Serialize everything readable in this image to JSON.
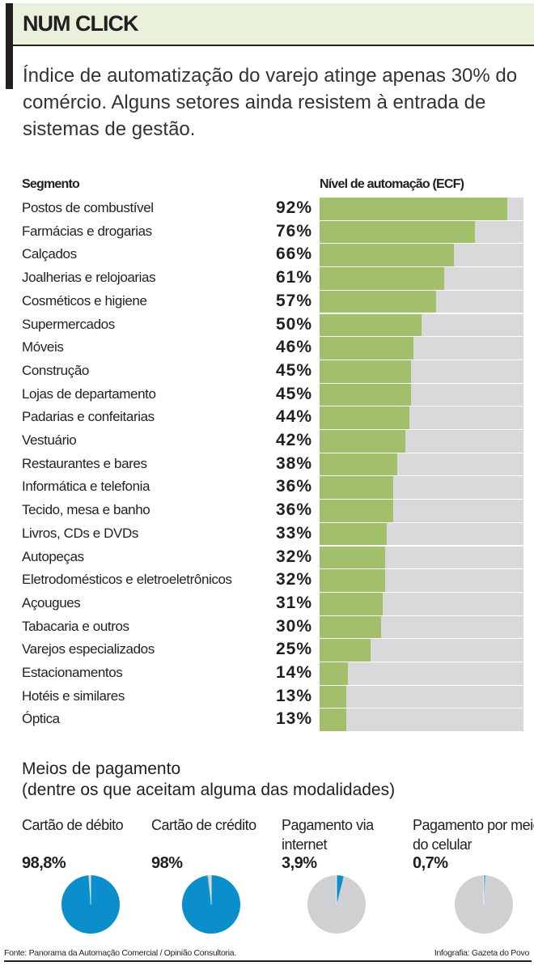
{
  "header": {
    "title": "NUM CLICK",
    "subtitle": "Índice de automatização do varejo atinge apenas 30% do comércio. Alguns setores ainda resistem à entrada de sistemas de gestão."
  },
  "colors": {
    "bar": "#a2bf6b",
    "track": "#d9d9db",
    "pie_fill": "#0b8fcc",
    "pie_rest": "#cfd0d2",
    "header_bg": "#e9f1dc"
  },
  "chart_data": [
    {
      "type": "bar",
      "orientation": "horizontal",
      "xlabel": "Segmento",
      "ylabel": "Nível de automação (ECF)",
      "xlim": [
        0,
        100
      ],
      "categories": [
        "Postos de combustível",
        "Farmácias e drogarias",
        "Calçados",
        "Joalherias e relojoarias",
        "Cosméticos e higiene",
        "Supermercados",
        "Móveis",
        "Construção",
        "Lojas de departamento",
        "Padarias e confeitarias",
        "Vestuário",
        "Restaurantes e bares",
        "Informática e telefonia",
        "Tecido, mesa e banho",
        "Livros, CDs e DVDs",
        "Autopeças",
        "Eletrodomésticos e eletroeletrônicos",
        "Açougues",
        "Tabacaria e outros",
        "Varejos especializados",
        "Estacionamentos",
        "Hotéis e similares",
        "Óptica"
      ],
      "values": [
        92,
        76,
        66,
        61,
        57,
        50,
        46,
        45,
        45,
        44,
        42,
        38,
        36,
        36,
        33,
        32,
        32,
        31,
        30,
        25,
        14,
        13,
        13
      ],
      "labels": [
        "92%",
        "76%",
        "66%",
        "61%",
        "57%",
        "50%",
        "46%",
        "45%",
        "45%",
        "44%",
        "42%",
        "38%",
        "36%",
        "36%",
        "33%",
        "32%",
        "32%",
        "31%",
        "30%",
        "25%",
        "14%",
        "13%",
        "13%"
      ]
    },
    {
      "type": "pie",
      "title": "Meios de pagamento",
      "subtitle": "(dentre os que aceitam alguma das modalidades)",
      "items": [
        {
          "label": "Cartão de débito",
          "value": 98.8,
          "text": "98,8%"
        },
        {
          "label": "Cartão de crédito",
          "value": 98,
          "text": "98%"
        },
        {
          "label": "Pagamento via internet",
          "value": 3.9,
          "text": "3,9%"
        },
        {
          "label": "Pagamento por meio do celular",
          "value": 0.7,
          "text": "0,7%"
        }
      ]
    }
  ],
  "footer": {
    "source": "Fonte: Panorama da Automação Comercial / Opinião Consultoria.",
    "credit": "Infografia: Gazeta do Povo"
  }
}
